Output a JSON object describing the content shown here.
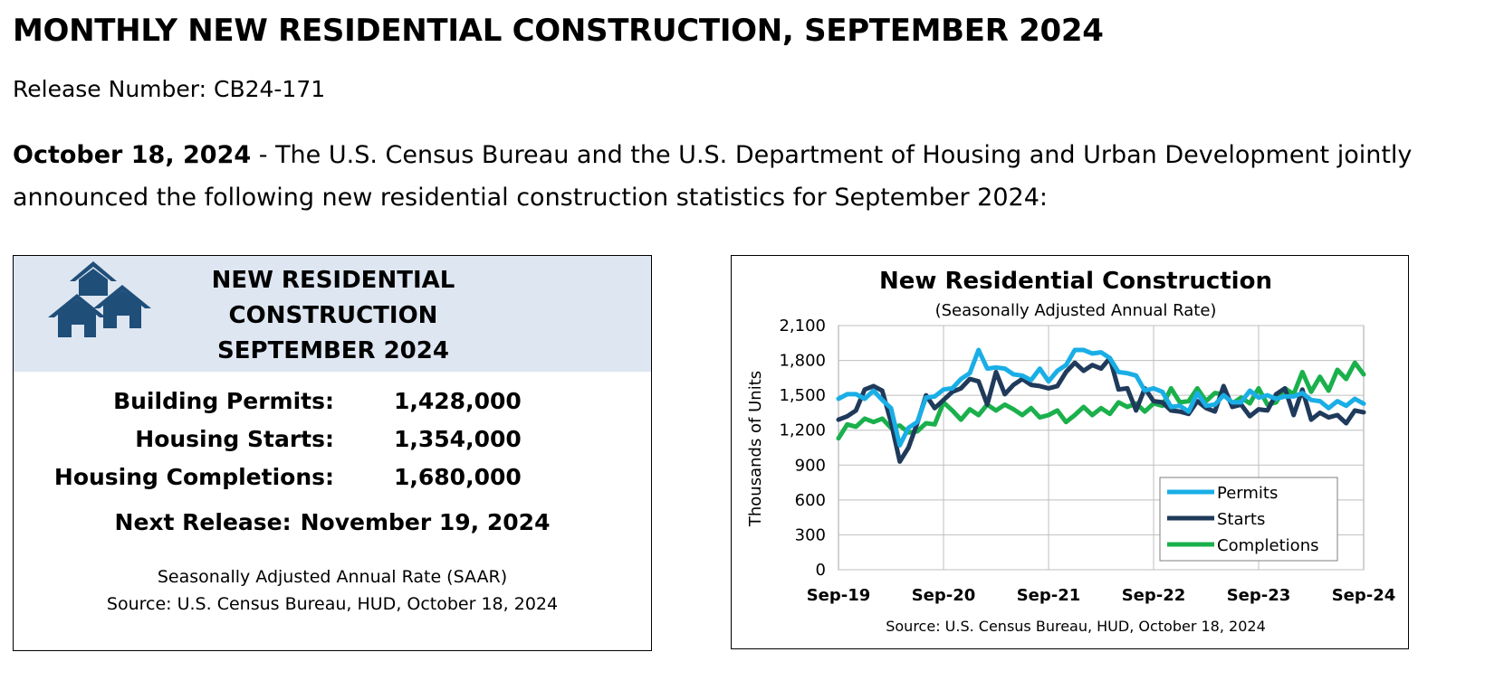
{
  "header": {
    "title": "MONTHLY NEW RESIDENTIAL CONSTRUCTION, SEPTEMBER 2024",
    "release_number": "Release Number: CB24-171",
    "date_bold": "October 18, 2024",
    "intro_line1": " - The U.S. Census Bureau and the U.S. Department of Housing and Urban Development jointly",
    "intro_line2": "announced the following new residential construction statistics for September 2024:"
  },
  "summary_panel": {
    "title_line1": "NEW RESIDENTIAL",
    "title_line2": "CONSTRUCTION",
    "title_line3": "SEPTEMBER 2024",
    "icon": "houses-icon",
    "header_color": "#dde6f1",
    "icon_color": "#1f4e79",
    "stats": [
      {
        "label": "Building Permits:",
        "value": "1,428,000"
      },
      {
        "label": "Housing Starts:",
        "value": "1,354,000"
      },
      {
        "label": "Housing Completions:",
        "value": "1,680,000"
      }
    ],
    "next_release_label": "Next Release:",
    "next_release_date": "November 19, 2024",
    "note_line1": "Seasonally Adjusted Annual Rate (SAAR)",
    "note_line2": "Source:  U.S. Census Bureau, HUD, October 18, 2024"
  },
  "chart_data": {
    "type": "line",
    "title": "New Residential Construction",
    "subtitle": "(Seasonally Adjusted Annual Rate)",
    "ylabel": "Thousands of Units",
    "xlabel": "",
    "source": "Source:  U.S. Census Bureau, HUD, October 18, 2024",
    "ylim": [
      0,
      2100
    ],
    "y_ticks": [
      "2,100",
      "1,800",
      "1,500",
      "1,200",
      "900",
      "600",
      "300",
      "0"
    ],
    "y_tick_values": [
      2100,
      1800,
      1500,
      1200,
      900,
      600,
      300,
      0
    ],
    "x_tick_labels": [
      "Sep-19",
      "Sep-20",
      "Sep-21",
      "Sep-22",
      "Sep-23",
      "Sep-24"
    ],
    "grid": true,
    "legend_position": "bottom-right",
    "x": [
      "2019-09",
      "2019-10",
      "2019-11",
      "2019-12",
      "2020-01",
      "2020-02",
      "2020-03",
      "2020-04",
      "2020-05",
      "2020-06",
      "2020-07",
      "2020-08",
      "2020-09",
      "2020-10",
      "2020-11",
      "2020-12",
      "2021-01",
      "2021-02",
      "2021-03",
      "2021-04",
      "2021-05",
      "2021-06",
      "2021-07",
      "2021-08",
      "2021-09",
      "2021-10",
      "2021-11",
      "2021-12",
      "2022-01",
      "2022-02",
      "2022-03",
      "2022-04",
      "2022-05",
      "2022-06",
      "2022-07",
      "2022-08",
      "2022-09",
      "2022-10",
      "2022-11",
      "2022-12",
      "2023-01",
      "2023-02",
      "2023-03",
      "2023-04",
      "2023-05",
      "2023-06",
      "2023-07",
      "2023-08",
      "2023-09",
      "2023-10",
      "2023-11",
      "2023-12",
      "2024-01",
      "2024-02",
      "2024-03",
      "2024-04",
      "2024-05",
      "2024-06",
      "2024-07",
      "2024-08",
      "2024-09"
    ],
    "series": [
      {
        "name": "Permits",
        "color": "#1aaee6",
        "values": [
          1470,
          1510,
          1510,
          1470,
          1540,
          1460,
          1390,
          1070,
          1220,
          1270,
          1480,
          1490,
          1550,
          1560,
          1640,
          1690,
          1890,
          1730,
          1740,
          1730,
          1680,
          1670,
          1630,
          1730,
          1620,
          1710,
          1760,
          1890,
          1890,
          1860,
          1870,
          1820,
          1700,
          1690,
          1670,
          1540,
          1560,
          1530,
          1400,
          1410,
          1360,
          1520,
          1410,
          1420,
          1500,
          1440,
          1440,
          1540,
          1480,
          1500,
          1470,
          1490,
          1490,
          1520,
          1460,
          1450,
          1390,
          1450,
          1410,
          1470,
          1428
        ]
      },
      {
        "name": "Starts",
        "color": "#1f3a5a",
        "values": [
          1290,
          1320,
          1370,
          1550,
          1580,
          1540,
          1270,
          930,
          1050,
          1260,
          1500,
          1390,
          1460,
          1530,
          1560,
          1640,
          1620,
          1420,
          1700,
          1510,
          1590,
          1640,
          1590,
          1580,
          1560,
          1580,
          1700,
          1780,
          1710,
          1760,
          1730,
          1820,
          1550,
          1560,
          1370,
          1560,
          1450,
          1440,
          1370,
          1360,
          1340,
          1450,
          1390,
          1360,
          1580,
          1400,
          1420,
          1320,
          1380,
          1370,
          1510,
          1560,
          1330,
          1550,
          1290,
          1350,
          1310,
          1330,
          1260,
          1370,
          1354
        ]
      },
      {
        "name": "Completions",
        "color": "#1ab04c",
        "values": [
          1130,
          1250,
          1230,
          1300,
          1270,
          1300,
          1220,
          1240,
          1180,
          1190,
          1260,
          1250,
          1440,
          1370,
          1290,
          1380,
          1330,
          1420,
          1370,
          1420,
          1380,
          1330,
          1390,
          1310,
          1330,
          1370,
          1270,
          1330,
          1400,
          1330,
          1390,
          1340,
          1440,
          1400,
          1430,
          1360,
          1430,
          1410,
          1560,
          1440,
          1450,
          1560,
          1450,
          1520,
          1510,
          1430,
          1480,
          1430,
          1560,
          1420,
          1440,
          1560,
          1510,
          1700,
          1530,
          1660,
          1540,
          1720,
          1640,
          1780,
          1680
        ]
      }
    ]
  }
}
